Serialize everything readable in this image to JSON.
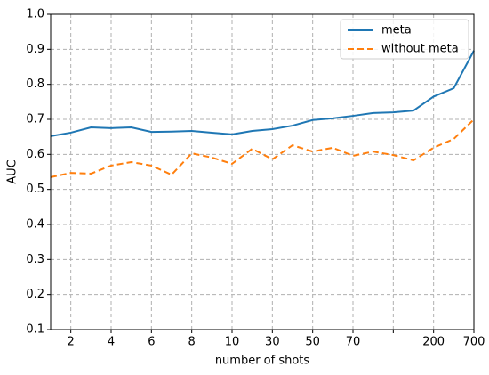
{
  "chart_data": {
    "type": "line",
    "xlabel": "number of shots",
    "ylabel": "AUC",
    "categories": [
      null,
      "2",
      null,
      "4",
      null,
      "6",
      null,
      "8",
      null,
      "10",
      null,
      "30",
      null,
      "50",
      null,
      "70",
      null,
      null,
      null,
      "200",
      null,
      "700"
    ],
    "series": [
      {
        "name": "meta",
        "color": "#1f77b4",
        "linestyle": "solid",
        "values": [
          0.652,
          0.662,
          0.677,
          0.675,
          0.677,
          0.664,
          0.665,
          0.667,
          0.662,
          0.657,
          0.667,
          0.672,
          0.682,
          0.698,
          0.703,
          0.71,
          0.718,
          0.72,
          0.725,
          0.765,
          0.789,
          0.896
        ]
      },
      {
        "name": "without meta",
        "color": "#ff7f0e",
        "linestyle": "dashed",
        "values": [
          0.535,
          0.547,
          0.545,
          0.568,
          0.578,
          0.568,
          0.542,
          0.603,
          0.591,
          0.573,
          0.616,
          0.586,
          0.626,
          0.608,
          0.619,
          0.596,
          0.608,
          0.598,
          0.583,
          0.619,
          0.644,
          0.7
        ]
      }
    ],
    "ylim": [
      0.1,
      1.0
    ],
    "yticks": [
      0.1,
      0.2,
      0.3,
      0.4,
      0.5,
      0.6,
      0.7,
      0.8,
      0.9,
      {
        "value": 1.0,
        "label": "1.0"
      }
    ],
    "grid": true,
    "legend": "upper right"
  }
}
